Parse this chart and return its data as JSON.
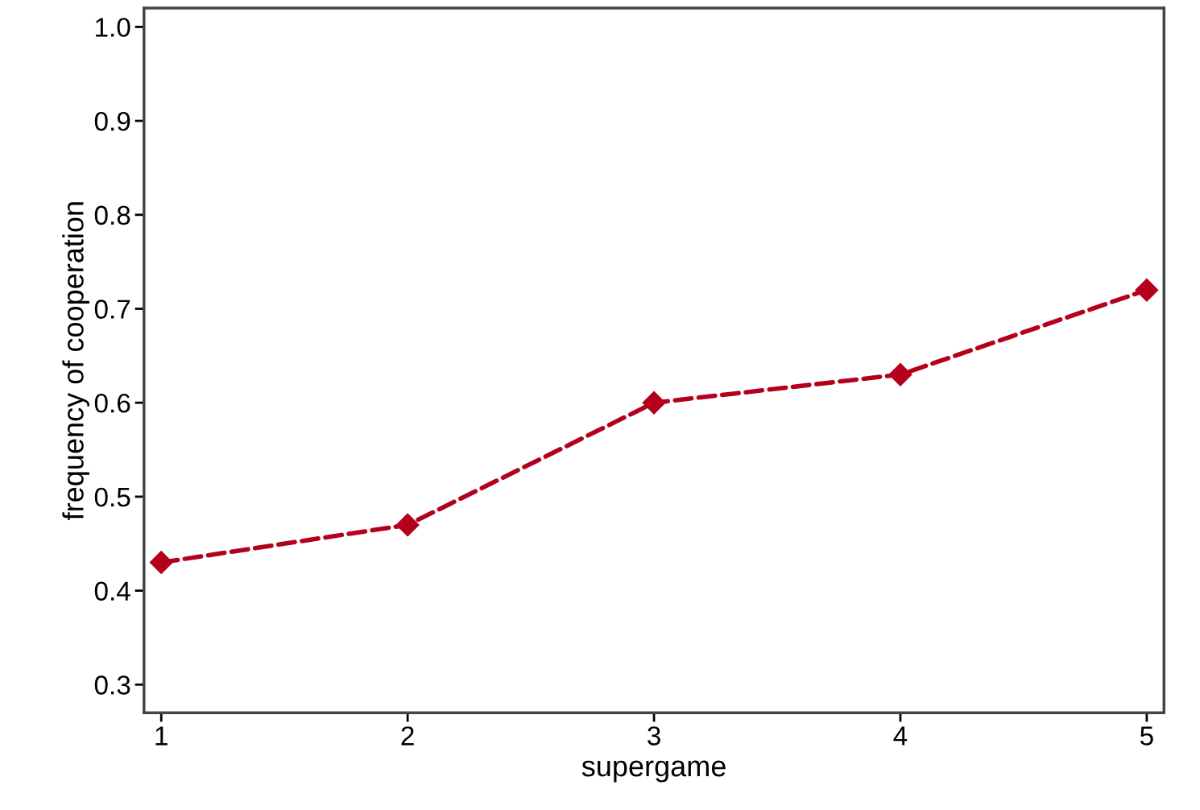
{
  "chart_data": {
    "type": "line",
    "xlabel": "supergame",
    "ylabel": "frequency of cooperation",
    "x": [
      1,
      2,
      3,
      4,
      5
    ],
    "series": [
      {
        "color": "#b5001c",
        "values": [
          0.43,
          0.47,
          0.6,
          0.63,
          0.72
        ]
      }
    ],
    "xlim": [
      0.93,
      5.07
    ],
    "xticks": [
      1,
      2,
      3,
      4,
      5
    ],
    "ylim": [
      0.27,
      1.02
    ],
    "yticks": [
      0.3,
      0.4,
      0.5,
      0.6,
      0.7,
      0.8,
      0.9,
      {
        "value": 1.0,
        "label": "1.0"
      }
    ],
    "marker": "diamond",
    "line_style": "dashed",
    "grid": false
  }
}
